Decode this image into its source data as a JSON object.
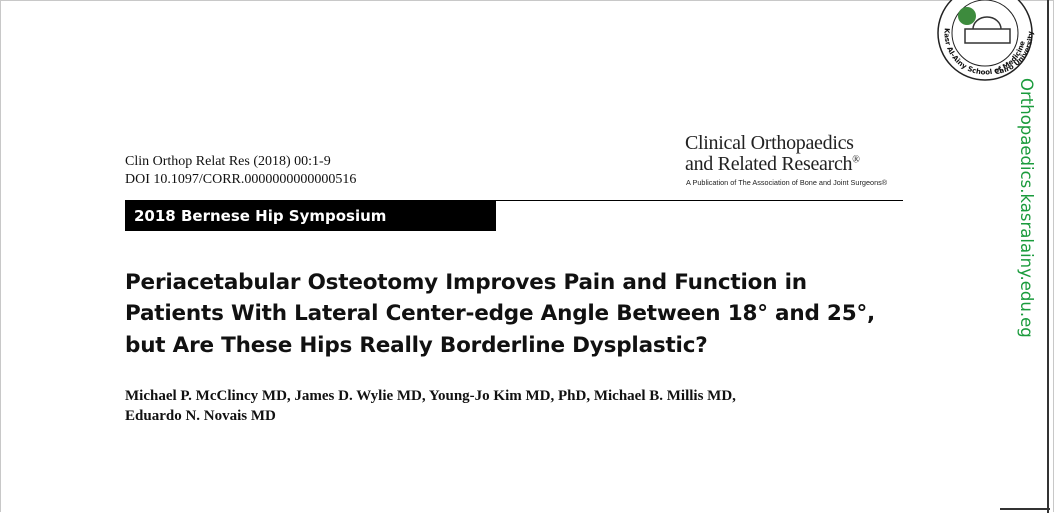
{
  "citation": {
    "journal_line": "Clin Orthop Relat Res (2018) 00:1-9",
    "doi": "DOI 10.1097/CORR.0000000000000516"
  },
  "journal_logo": {
    "line1": "Clinical Orthopaedics",
    "line2": "and Related Research",
    "mark": "®",
    "tagline": "A Publication of The Association of Bone and Joint Surgeons®"
  },
  "section": "2018 Bernese Hip Symposium",
  "title_lines": [
    "Periacetabular Osteotomy Improves Pain and Function in",
    "Patients With Lateral Center-edge Angle Between 18° and 25°,",
    "but Are These Hips Really Borderline Dysplastic?"
  ],
  "author_lines": [
    "Michael P. McClincy MD, James D. Wylie MD, Young-Jo Kim MD, PhD, Michael B. Millis MD,",
    "Eduardo N. Novais MD"
  ],
  "watermark": {
    "site": "Orthopaedics.kasralainy.edu.eg",
    "seal_ring_left": "Kasr Al-Ainy School of Medicine",
    "seal_ring_right": "Cairo University"
  }
}
